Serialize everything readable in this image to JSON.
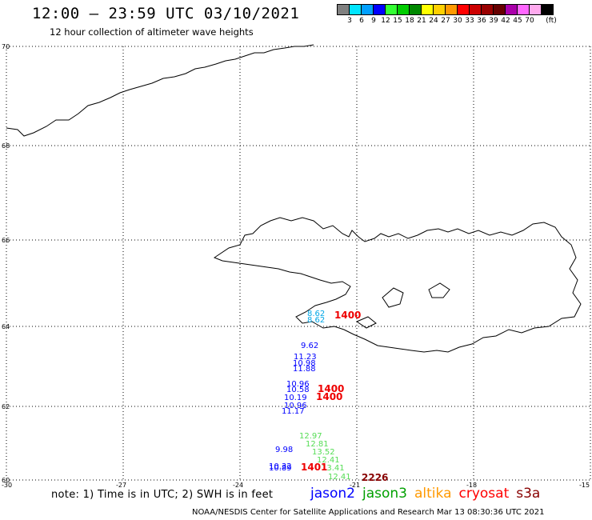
{
  "header": {
    "title": "12:00 – 23:59 UTC 03/10/2021",
    "subtitle": "12 hour collection of altimeter wave heights"
  },
  "colorbar": {
    "swatches": [
      "#808080",
      "#00e5ff",
      "#00a0ff",
      "#0000ff",
      "#33ff33",
      "#00cc00",
      "#008800",
      "#ffff00",
      "#ffd000",
      "#ff9900",
      "#ff0000",
      "#cc0000",
      "#990000",
      "#660000",
      "#aa00aa",
      "#ff66ff",
      "#ffaaee",
      "#000000"
    ],
    "labels": [
      "3",
      "6",
      "9",
      "12",
      "15",
      "18",
      "21",
      "24",
      "27",
      "30",
      "33",
      "36",
      "39",
      "42",
      "45",
      "70",
      "(ft)"
    ]
  },
  "axes": {
    "lon_labels": [
      "-30",
      "-27",
      "-24",
      "-21",
      "-18",
      "-15"
    ],
    "lat_labels": [
      "70",
      "68",
      "66",
      "64",
      "62",
      "60"
    ]
  },
  "observations": {
    "jason2": [
      "9.62",
      "11.23",
      "10.98",
      "11.88",
      "10.96",
      "10.58",
      "10.19",
      "10.96",
      "11.17",
      "9.98",
      "10.32",
      "10.89"
    ],
    "jason3": [
      "12.97",
      "12.81",
      "13.52",
      "12.41",
      "13.41",
      "12.41"
    ],
    "sentinel_cyan": [
      "8.62",
      "8.62"
    ],
    "times": [
      "1400",
      "1400",
      "1400",
      "1401",
      "2226"
    ]
  },
  "footer": {
    "note": "note:  1) Time is in UTC;  2) SWH is in feet",
    "credit": "NOAA/NESDIS Center for Satellite Applications and Research     Mar 13 08:30:36 UTC 2021"
  },
  "legend": [
    {
      "label": "jason2",
      "color": "#0000ff"
    },
    {
      "label": "jason3",
      "color": "#00a000"
    },
    {
      "label": "altika",
      "color": "#ff9900"
    },
    {
      "label": "cryosat",
      "color": "#ff0000"
    },
    {
      "label": "s3a",
      "color": "#880000"
    }
  ]
}
